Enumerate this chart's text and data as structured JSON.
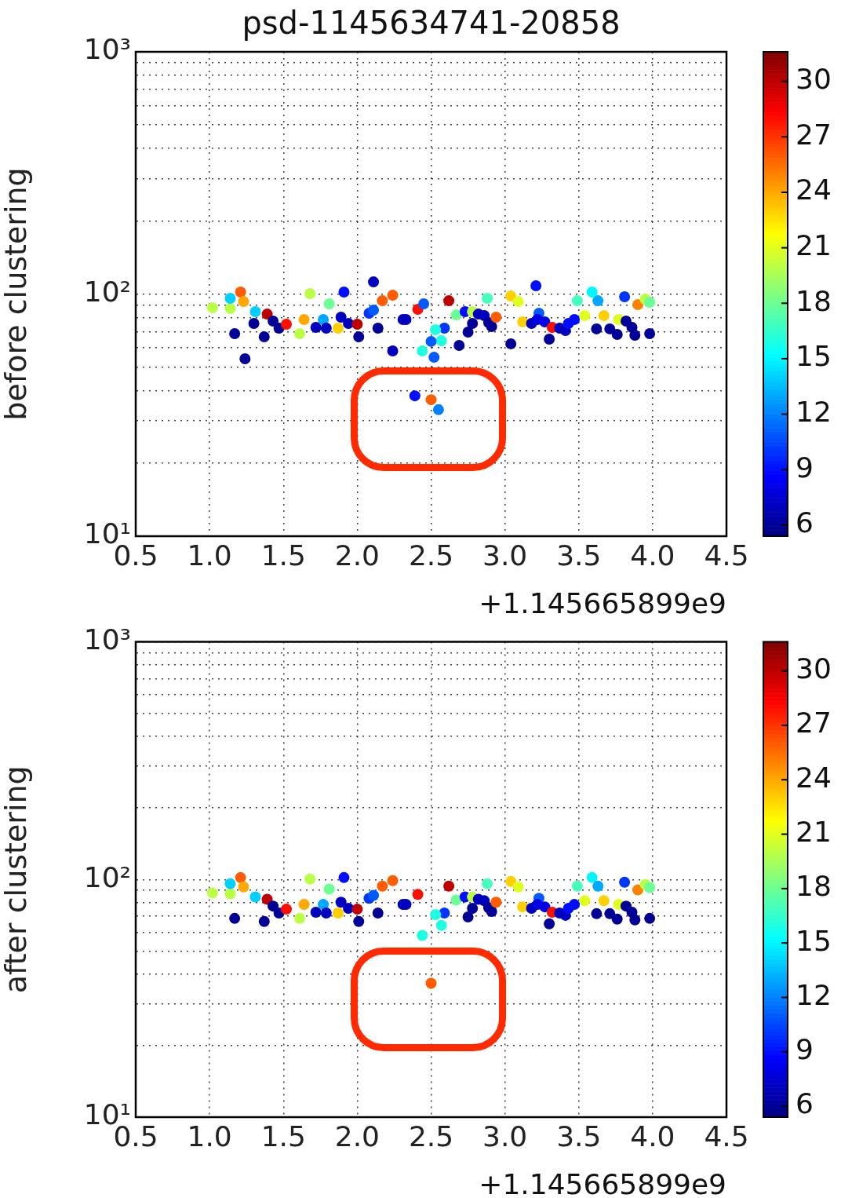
{
  "chart_data": [
    {
      "type": "scatter",
      "title": "psd-1145634741-20858",
      "ylabel": "before clustering",
      "annotations": [
        "+1.145665899e9"
      ],
      "marker": "circle",
      "grid": true,
      "log": "y",
      "xlim": [
        0.5,
        4.5
      ],
      "xticks": [
        0.5,
        {
          "value": 1,
          "label": "1.0"
        },
        1.5,
        {
          "value": 2,
          "label": "2.0"
        },
        2.5,
        {
          "value": 3,
          "label": "3.0"
        },
        3.5,
        {
          "value": 4,
          "label": "4.0"
        },
        4.5
      ],
      "ylim": [
        10,
        1000
      ],
      "yticks": [
        {
          "value": 10,
          "label": "10¹"
        },
        {
          "value": 20,
          "label": null
        },
        {
          "value": 30,
          "label": null
        },
        {
          "value": 40,
          "label": null
        },
        {
          "value": 50,
          "label": null
        },
        {
          "value": 60,
          "label": null
        },
        {
          "value": 70,
          "label": null
        },
        {
          "value": 80,
          "label": null
        },
        {
          "value": 90,
          "label": null
        },
        {
          "value": 100,
          "label": "10²"
        },
        {
          "value": 200,
          "label": null
        },
        {
          "value": 300,
          "label": null
        },
        {
          "value": 400,
          "label": null
        },
        {
          "value": 500,
          "label": null
        },
        {
          "value": 600,
          "label": null
        },
        {
          "value": 700,
          "label": null
        },
        {
          "value": 800,
          "label": null
        },
        {
          "value": 900,
          "label": null
        },
        {
          "value": 1000,
          "label": "10³"
        }
      ],
      "clim": [
        5.4,
        31.6
      ],
      "cticks": [
        6,
        9,
        12,
        15,
        18,
        21,
        24,
        27,
        30
      ],
      "x": [
        1.02,
        1.14,
        1.14,
        1.21,
        1.23,
        1.17,
        1.24,
        1.31,
        1.3,
        1.39,
        1.37,
        1.43,
        1.47,
        1.52,
        1.61,
        1.64,
        1.68,
        1.72,
        1.77,
        1.79,
        1.81,
        1.87,
        1.89,
        1.91,
        1.94,
        2.0,
        2.01,
        2.11,
        2.08,
        2.11,
        2.14,
        2.17,
        2.24,
        2.24,
        2.31,
        2.33,
        2.41,
        2.45,
        2.39,
        2.5,
        2.55,
        2.62,
        2.88,
        3.04,
        3.09,
        3.21,
        3.59,
        3.63,
        3.49,
        3.81,
        3.9,
        3.95,
        3.98,
        2.67,
        2.73,
        2.78,
        2.82,
        2.86,
        2.78,
        2.75,
        2.89,
        2.91,
        2.94,
        2.69,
        2.59,
        2.53,
        2.57,
        2.5,
        2.52,
        2.44,
        3.04,
        3.12,
        3.18,
        3.23,
        3.22,
        3.27,
        3.32,
        3.3,
        3.37,
        3.41,
        3.43,
        3.47,
        3.54,
        3.67,
        3.77,
        3.62,
        3.71,
        3.76,
        3.82,
        3.86,
        3.88,
        3.98
      ],
      "values": [
        87.8,
        87.1,
        96.0,
        101.9,
        93.1,
        68.6,
        54.0,
        84.5,
        75.6,
        82.6,
        66.6,
        77.3,
        72.3,
        75.0,
        68.6,
        78.5,
        100.4,
        72.8,
        78.5,
        72.3,
        91.1,
        72.3,
        80.2,
        101.9,
        75.6,
        75.0,
        66.6,
        112.2,
        83.3,
        85.8,
        72.3,
        93.8,
        98.9,
        58.2,
        78.5,
        78.5,
        86.5,
        91.1,
        38.0,
        36.6,
        33.3,
        93.8,
        96.0,
        98.1,
        93.1,
        108.1,
        101.9,
        93.8,
        93.8,
        97.4,
        90.4,
        95.3,
        92.5,
        82.0,
        84.5,
        84.5,
        82.6,
        81.4,
        75.6,
        69.6,
        76.1,
        73.4,
        80.2,
        61.3,
        72.3,
        71.2,
        64.1,
        63.7,
        54.8,
        58.2,
        62.3,
        76.7,
        75.6,
        83.3,
        78.5,
        76.7,
        72.8,
        65.1,
        72.3,
        70.7,
        75.6,
        78.5,
        81.4,
        81.4,
        78.5,
        71.8,
        71.8,
        68.1,
        77.3,
        72.8,
        67.6,
        68.6
      ],
      "cvalues": [
        20,
        20,
        14,
        26,
        24,
        6,
        6,
        14,
        6,
        30,
        6,
        6,
        6,
        28,
        20,
        24,
        20,
        7,
        13,
        7,
        18,
        23,
        7,
        9,
        7,
        30,
        6,
        7,
        10,
        11,
        6,
        26,
        26,
        7,
        7,
        7,
        28,
        11,
        9,
        26,
        12,
        30,
        17,
        23,
        21,
        9,
        15,
        13,
        17,
        10,
        25,
        20,
        18,
        18,
        9,
        20,
        7,
        7,
        6,
        6,
        6,
        6,
        26,
        6,
        10,
        16,
        16,
        11,
        11,
        16,
        6,
        23,
        7,
        11,
        8,
        8,
        28,
        6,
        7,
        7,
        9,
        9,
        21,
        23,
        21,
        6,
        6,
        6,
        6,
        6,
        6,
        6
      ]
    },
    {
      "type": "scatter",
      "ylabel": "after clustering",
      "annotations": [
        "+1.145665899e9"
      ],
      "marker": "circle",
      "grid": true,
      "log": "y",
      "xlim": [
        0.5,
        4.5
      ],
      "xticks": [
        0.5,
        {
          "value": 1,
          "label": "1.0"
        },
        1.5,
        {
          "value": 2,
          "label": "2.0"
        },
        2.5,
        {
          "value": 3,
          "label": "3.0"
        },
        3.5,
        {
          "value": 4,
          "label": "4.0"
        },
        4.5
      ],
      "ylim": [
        10,
        1000
      ],
      "yticks": [
        {
          "value": 10,
          "label": "10¹"
        },
        {
          "value": 20,
          "label": null
        },
        {
          "value": 30,
          "label": null
        },
        {
          "value": 40,
          "label": null
        },
        {
          "value": 50,
          "label": null
        },
        {
          "value": 60,
          "label": null
        },
        {
          "value": 70,
          "label": null
        },
        {
          "value": 80,
          "label": null
        },
        {
          "value": 90,
          "label": null
        },
        {
          "value": 100,
          "label": "10²"
        },
        {
          "value": 200,
          "label": null
        },
        {
          "value": 300,
          "label": null
        },
        {
          "value": 400,
          "label": null
        },
        {
          "value": 500,
          "label": null
        },
        {
          "value": 600,
          "label": null
        },
        {
          "value": 700,
          "label": null
        },
        {
          "value": 800,
          "label": null
        },
        {
          "value": 900,
          "label": null
        },
        {
          "value": 1000,
          "label": "10³"
        }
      ],
      "clim": [
        5.4,
        31.6
      ],
      "cticks": [
        6,
        9,
        12,
        15,
        18,
        21,
        24,
        27,
        30
      ],
      "x": [
        1.02,
        1.14,
        1.14,
        1.21,
        1.23,
        1.17,
        1.31,
        1.39,
        1.37,
        1.43,
        1.47,
        1.52,
        1.61,
        1.64,
        1.68,
        1.72,
        1.77,
        1.79,
        1.81,
        1.87,
        1.89,
        1.91,
        1.94,
        2.0,
        2.01,
        2.08,
        2.11,
        2.14,
        2.17,
        2.24,
        2.31,
        2.33,
        2.41,
        2.5,
        2.62,
        2.88,
        3.04,
        3.09,
        3.59,
        3.63,
        3.49,
        3.81,
        3.9,
        3.95,
        3.98,
        2.67,
        2.73,
        2.78,
        2.82,
        2.86,
        2.78,
        2.75,
        2.89,
        2.91,
        2.94,
        2.59,
        2.53,
        2.57,
        2.44,
        3.12,
        3.18,
        3.23,
        3.22,
        3.27,
        3.32,
        3.3,
        3.37,
        3.41,
        3.43,
        3.47,
        3.54,
        3.67,
        3.77,
        3.62,
        3.71,
        3.76,
        3.82,
        3.86,
        3.88,
        3.98
      ],
      "values": [
        87.8,
        87.1,
        96.0,
        101.9,
        93.1,
        68.6,
        84.5,
        82.6,
        66.6,
        77.3,
        72.3,
        75.0,
        68.6,
        78.5,
        100.4,
        72.8,
        78.5,
        72.3,
        91.1,
        72.3,
        80.2,
        101.9,
        75.6,
        75.0,
        66.6,
        83.3,
        85.8,
        72.3,
        93.8,
        98.9,
        78.5,
        78.5,
        86.5,
        36.6,
        93.8,
        96.0,
        98.1,
        93.1,
        101.9,
        93.8,
        93.8,
        97.4,
        90.4,
        95.3,
        92.5,
        82.0,
        84.5,
        84.5,
        82.6,
        81.4,
        75.6,
        69.6,
        76.1,
        73.4,
        80.2,
        72.3,
        71.2,
        64.1,
        58.2,
        76.7,
        75.6,
        83.3,
        78.5,
        76.7,
        72.8,
        65.1,
        72.3,
        70.7,
        75.6,
        78.5,
        81.4,
        81.4,
        78.5,
        71.8,
        71.8,
        68.1,
        77.3,
        72.8,
        67.6,
        68.6
      ],
      "cvalues": [
        20,
        20,
        14,
        26,
        24,
        6,
        14,
        30,
        6,
        6,
        6,
        28,
        20,
        24,
        20,
        7,
        13,
        7,
        18,
        23,
        7,
        9,
        7,
        30,
        6,
        10,
        11,
        6,
        26,
        26,
        7,
        7,
        28,
        26,
        30,
        17,
        23,
        21,
        15,
        13,
        17,
        10,
        25,
        20,
        18,
        18,
        9,
        20,
        7,
        7,
        6,
        6,
        6,
        6,
        26,
        10,
        16,
        16,
        16,
        23,
        7,
        11,
        8,
        8,
        28,
        6,
        7,
        7,
        9,
        9,
        21,
        23,
        21,
        6,
        6,
        6,
        6,
        6,
        6,
        6
      ]
    }
  ]
}
